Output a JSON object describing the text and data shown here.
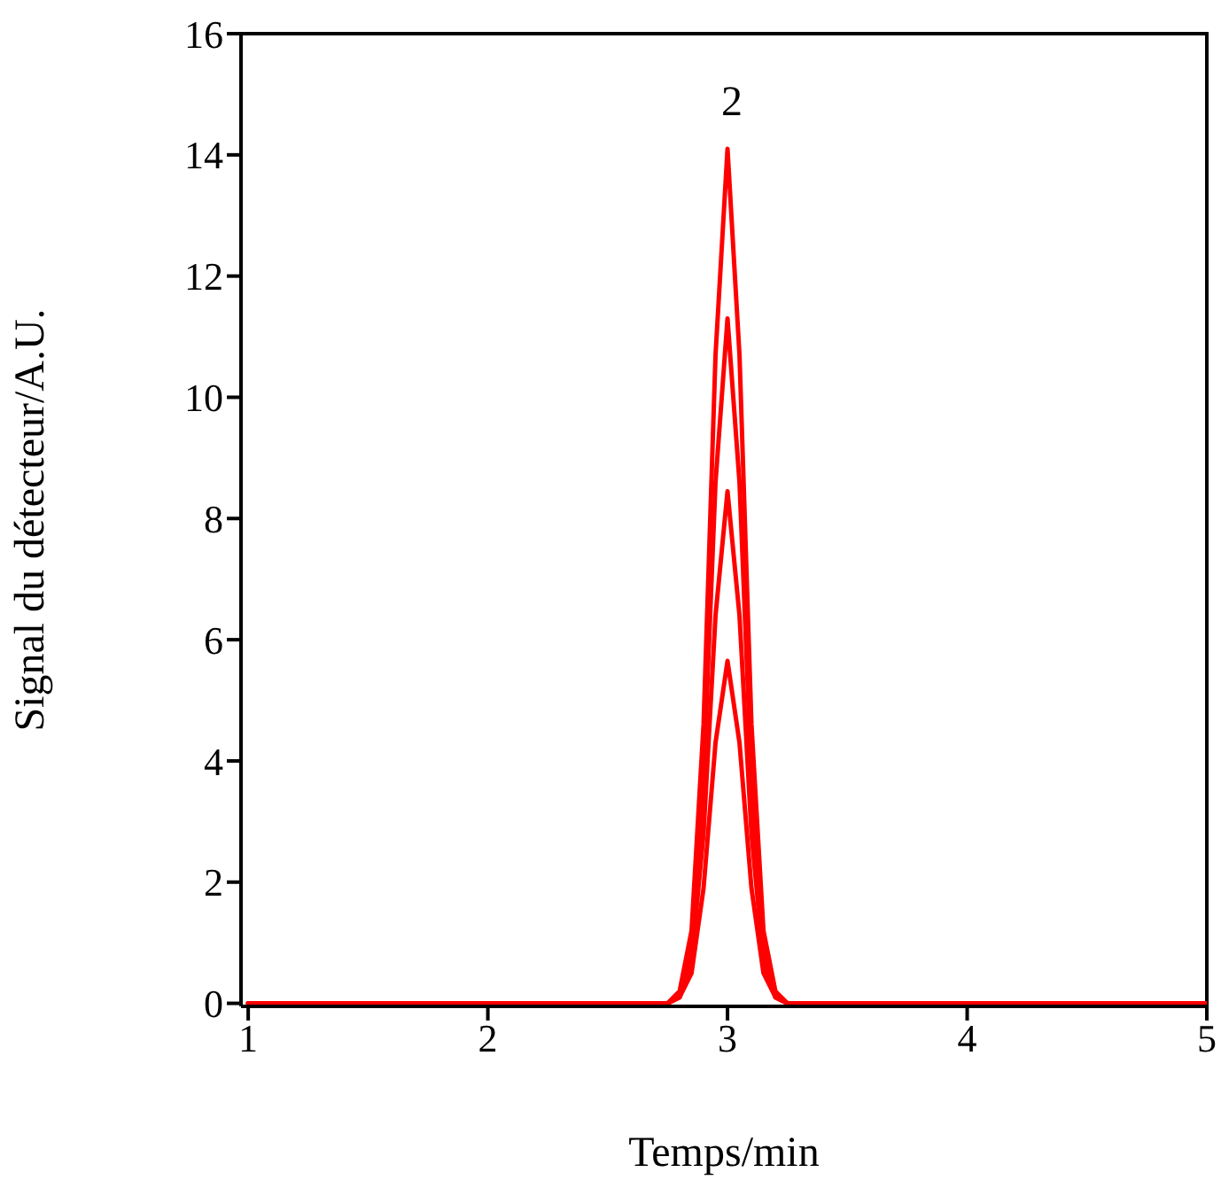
{
  "chart_data": {
    "type": "line",
    "xlabel": "Temps/min",
    "ylabel": "Signal du détecteur/A.U.",
    "x": [
      1,
      2.7,
      2.75,
      2.8,
      2.85,
      2.9,
      2.95,
      3,
      3.05,
      3.1,
      3.15,
      3.2,
      3.25,
      3.3,
      5
    ],
    "series": [
      {
        "color": "#ff0000",
        "values": [
          0,
          0,
          0,
          0.2,
          1.2,
          4.6,
          10.7,
          14.1,
          10.7,
          4.6,
          1.2,
          0.2,
          0,
          0,
          0
        ]
      },
      {
        "color": "#ff0000",
        "values": [
          0,
          0,
          0,
          0.1,
          0.9,
          3.7,
          8.6,
          11.3,
          8.6,
          3.7,
          0.9,
          0.1,
          0,
          0,
          0
        ]
      },
      {
        "color": "#ff0000",
        "values": [
          0,
          0,
          0,
          0.1,
          0.7,
          2.8,
          6.4,
          8.45,
          6.4,
          2.8,
          0.7,
          0.1,
          0,
          0,
          0
        ]
      },
      {
        "color": "#ff0000",
        "values": [
          0,
          0,
          0,
          0.1,
          0.5,
          1.9,
          4.3,
          5.65,
          4.3,
          1.9,
          0.5,
          0.1,
          0,
          0,
          0
        ]
      }
    ],
    "xlim": [
      0.97,
      5
    ],
    "xticks": [
      1,
      2,
      3,
      4,
      5
    ],
    "ylim": [
      -0.05,
      16
    ],
    "yticks": [
      0,
      2,
      4,
      6,
      8,
      10,
      12,
      14,
      16
    ],
    "annotations": [
      "2"
    ],
    "grid": false,
    "legend": false,
    "marker": "none",
    "line_style": "solid"
  }
}
